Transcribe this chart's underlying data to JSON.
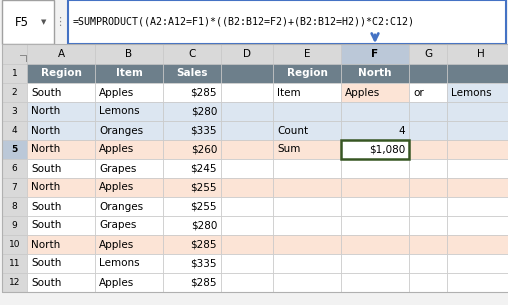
{
  "formula_bar_text": "=SUMPRODUCT((A2:A12=F1)*((B2:B12=F2)+(B2:B12=H2))*C2:C12)",
  "cell_ref": "F5",
  "col_headers": [
    "A",
    "B",
    "C",
    "D",
    "E",
    "F",
    "G",
    "H"
  ],
  "row_headers": [
    "1",
    "2",
    "3",
    "4",
    "5",
    "6",
    "7",
    "8",
    "9",
    "10",
    "11",
    "12"
  ],
  "data_rows": [
    [
      "Region",
      "Item",
      "Sales",
      "",
      "Region",
      "North",
      "",
      ""
    ],
    [
      "South",
      "Apples",
      "$285",
      "",
      "Item",
      "Apples",
      "or",
      "Lemons"
    ],
    [
      "North",
      "Lemons",
      "$280",
      "",
      "",
      "",
      "",
      ""
    ],
    [
      "North",
      "Oranges",
      "$335",
      "",
      "Count",
      "4",
      "",
      ""
    ],
    [
      "North",
      "Apples",
      "$260",
      "",
      "Sum",
      "$1,080",
      "",
      ""
    ],
    [
      "South",
      "Grapes",
      "$245",
      "",
      "",
      "",
      "",
      ""
    ],
    [
      "North",
      "Apples",
      "$255",
      "",
      "",
      "",
      "",
      ""
    ],
    [
      "South",
      "Oranges",
      "$255",
      "",
      "",
      "",
      "",
      ""
    ],
    [
      "South",
      "Grapes",
      "$280",
      "",
      "",
      "",
      "",
      ""
    ],
    [
      "North",
      "Apples",
      "$285",
      "",
      "",
      "",
      "",
      ""
    ],
    [
      "South",
      "Lemons",
      "$335",
      "",
      "",
      "",
      "",
      ""
    ],
    [
      "South",
      "Apples",
      "$285",
      "",
      "",
      "",
      "",
      ""
    ]
  ],
  "header_bg": "#6d7f8b",
  "header_text": "#ffffff",
  "row_alt_blue": "#dce6f1",
  "row_highlight_salmon": "#fce4d6",
  "col_header_bg": "#d9d9d9",
  "formula_bar_border": "#4472c4",
  "grid_color": "#c8c8c8",
  "selected_col_bg": "#bbc8d8",
  "sum_cell_border": "#375623",
  "apples_f2_bg": "#fce4d6",
  "lemons_h2_bg": "#dce6f1",
  "arrow_color": "#4472c4",
  "outer_bg": "#f2f2f2",
  "row_bg_map": [
    null,
    null,
    "#dce6f1",
    "#dce6f1",
    "#fce4d6",
    null,
    "#fce4d6",
    null,
    null,
    "#fce4d6",
    null,
    null
  ]
}
